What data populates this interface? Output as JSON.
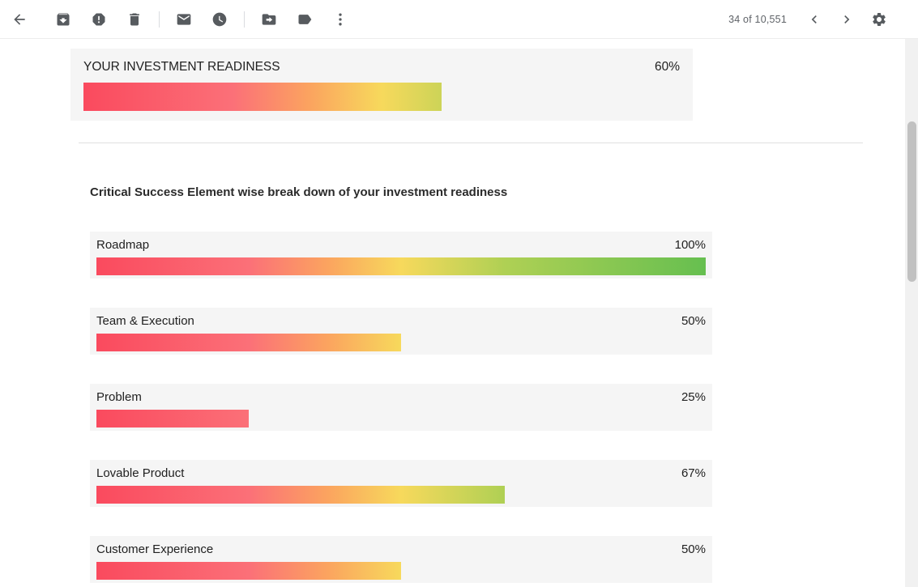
{
  "toolbar": {
    "count": "34 of 10,551",
    "icons": [
      "back-arrow",
      "archive",
      "report-spam",
      "delete",
      "mark-unread",
      "snooze",
      "move-to",
      "labels",
      "more-options",
      "chevron-left",
      "chevron-right",
      "settings-gear"
    ]
  },
  "colors": {
    "bar_gradient": [
      "#fa4a5e",
      "#fb7078",
      "#fba45f",
      "#f7d95c",
      "#afd054",
      "#66bf50"
    ],
    "box_background": "#f5f5f5",
    "icon_gray": "#575b5f",
    "scrollbar_thumb": "#c1c1c1"
  },
  "email": {
    "summary": {
      "label": "YOUR INVESTMENT READINESS",
      "percent_label": "60%",
      "value": 60
    },
    "section_heading": "Critical Success Element wise break down of your investment readiness",
    "elements": [
      {
        "label": "Roadmap",
        "percent_label": "100%",
        "value": 100
      },
      {
        "label": "Team & Execution",
        "percent_label": "50%",
        "value": 50
      },
      {
        "label": "Problem",
        "percent_label": "25%",
        "value": 25
      },
      {
        "label": "Lovable Product",
        "percent_label": "67%",
        "value": 67
      },
      {
        "label": "Customer Experience",
        "percent_label": "50%",
        "value": 50
      }
    ]
  }
}
